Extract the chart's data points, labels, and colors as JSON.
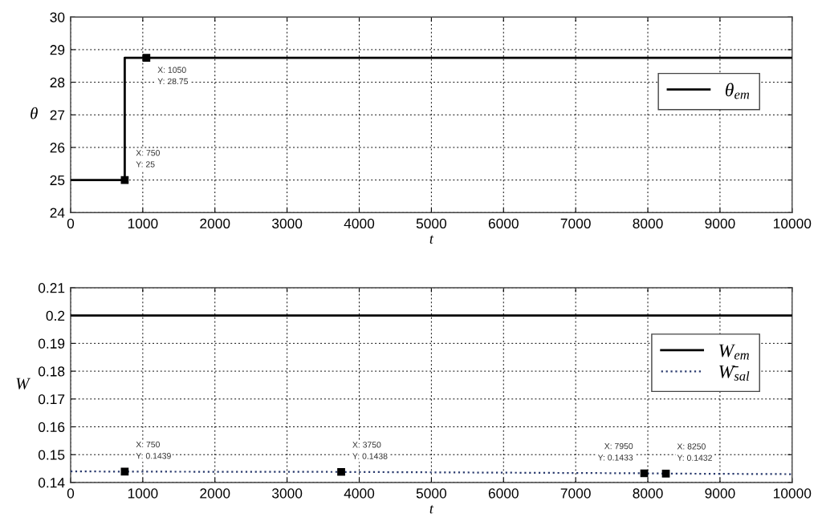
{
  "chart_data": [
    {
      "type": "step",
      "xlabel": "t",
      "ylabel": "θ",
      "x": [
        0,
        750,
        10000
      ],
      "series": [
        {
          "name": "θ$_{em}$",
          "color": "#000000",
          "values": [
            25,
            28.75,
            28.75
          ],
          "line_style": "solid"
        }
      ],
      "xlim": [
        0,
        10000
      ],
      "xticks": [
        0,
        1000,
        2000,
        3000,
        4000,
        5000,
        6000,
        7000,
        8000,
        9000,
        10000
      ],
      "ylim": [
        24,
        30
      ],
      "yticks": [
        24,
        25,
        26,
        27,
        28,
        29,
        30
      ],
      "grid": true,
      "legend": "top right",
      "annotations": [
        {
          "text": "X: 750\nY: 25",
          "x": 750,
          "y": 25
        },
        {
          "text": "X: 1050\nY: 28.75",
          "x": 1050,
          "y": 28.75
        }
      ]
    },
    {
      "type": "line",
      "xlabel": "t",
      "ylabel": "W",
      "series": [
        {
          "name": "W$_{em}$",
          "color": "#000000",
          "x": [
            0,
            10000
          ],
          "values": [
            0.2,
            0.2
          ],
          "line_style": "solid"
        },
        {
          "name": "W̄$_{sal}$",
          "color": "#2a3b6e",
          "x": [
            0,
            750,
            3750,
            7950,
            8250,
            10000
          ],
          "values": [
            0.144,
            0.1439,
            0.1438,
            0.1433,
            0.1432,
            0.143
          ],
          "line_style": "dotted"
        }
      ],
      "xlim": [
        0,
        10000
      ],
      "xticks": [
        0,
        1000,
        2000,
        3000,
        4000,
        5000,
        6000,
        7000,
        8000,
        9000,
        10000
      ],
      "ylim": [
        0.14,
        0.21
      ],
      "yticks": [
        0.14,
        0.15,
        0.16,
        0.17,
        0.18,
        0.19,
        0.2,
        0.21
      ],
      "grid": true,
      "legend": "top right",
      "annotations": [
        {
          "text": "X: 750\nY: 0.1439",
          "x": 750,
          "y": 0.1439
        },
        {
          "text": "X: 3750\nY: 0.1438",
          "x": 3750,
          "y": 0.1438
        },
        {
          "text": "X: 7950\nY: 0.1433",
          "x": 7950,
          "y": 0.1433
        },
        {
          "text": "X: 8250\nY: 0.1432",
          "x": 8250,
          "y": 0.1432
        }
      ]
    }
  ]
}
